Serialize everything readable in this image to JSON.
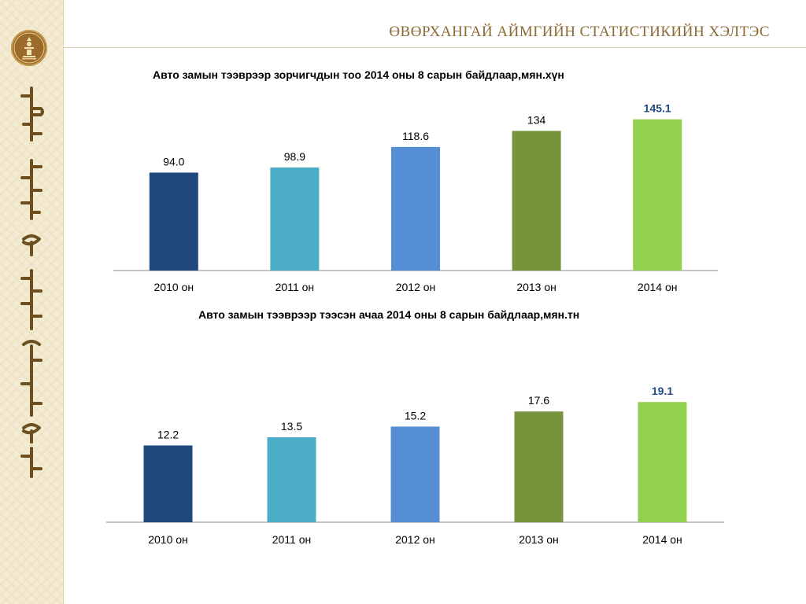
{
  "header": {
    "organization": "ӨВӨРХАНГАЙ АЙМГИЙН СТАТИСТИКИЙН ХЭЛТЭС",
    "logo_icon": "statistics-emblem-icon",
    "side_script_icon": "mongolian-script-icon"
  },
  "colors": {
    "brand": "#8c6a34",
    "axis": "#8e8e8e",
    "highlight_label": "#1f497d"
  },
  "chart_data": [
    {
      "type": "bar",
      "title": "Авто замын тээврээр зорчигчдын тоо 2014 оны 8 сарын байдлаар,мян.хүн",
      "categories": [
        "2010 он",
        "2011 он",
        "2012 он",
        "2013 он",
        "2014 он"
      ],
      "values": [
        94.0,
        98.9,
        118.6,
        134,
        145.1
      ],
      "value_labels": [
        "94.0",
        "98.9",
        "118.6",
        "134",
        "145.1"
      ],
      "bar_colors": [
        "#1f497d",
        "#4bacc6",
        "#558ed5",
        "#77933c",
        "#92d050"
      ],
      "highlight_index": 4,
      "xlabel": "",
      "ylabel": "",
      "ylim": [
        0,
        160
      ],
      "grid": false,
      "legend": "none"
    },
    {
      "type": "bar",
      "title": "Авто замын тээврээр тээсэн ачаа  2014 оны 8 сарын байдлаар,мян.тн",
      "categories": [
        "2010 он",
        "2011 он",
        "2012 он",
        "2013 он",
        "2014 он"
      ],
      "values": [
        12.2,
        13.5,
        15.2,
        17.6,
        19.1
      ],
      "value_labels": [
        "12.2",
        "13.5",
        "15.2",
        "17.6",
        "19.1"
      ],
      "bar_colors": [
        "#1f497d",
        "#4bacc6",
        "#558ed5",
        "#77933c",
        "#92d050"
      ],
      "highlight_index": 4,
      "xlabel": "",
      "ylabel": "",
      "ylim": [
        0,
        24
      ],
      "grid": false,
      "legend": "none"
    }
  ]
}
